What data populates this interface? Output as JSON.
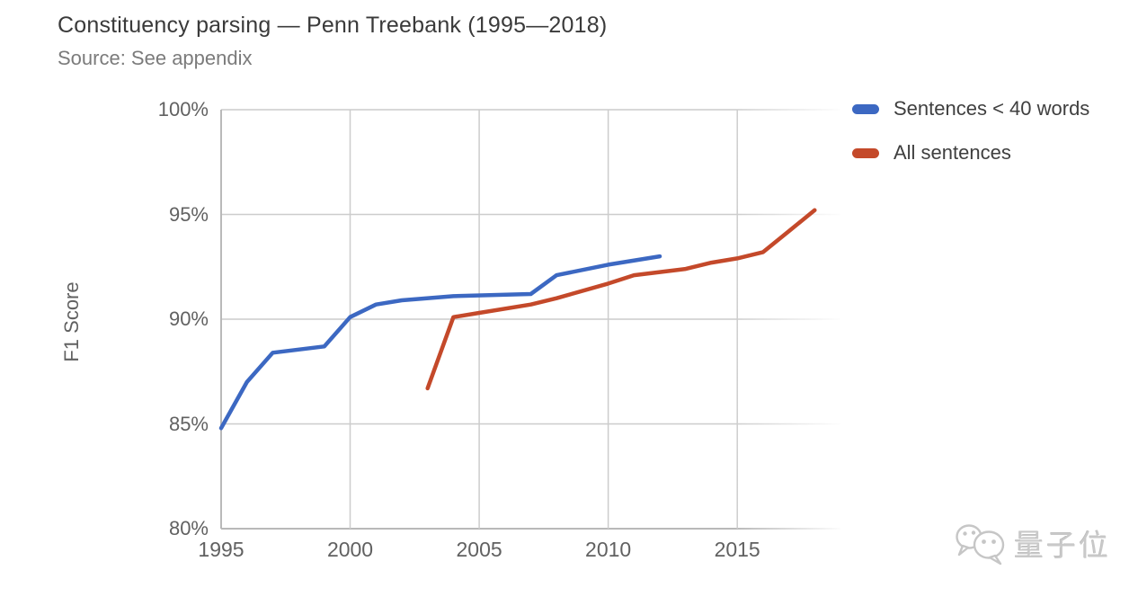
{
  "header": {
    "title": "Constituency parsing — Penn Treebank (1995—2018)",
    "source": "Source: See appendix"
  },
  "chart_data": {
    "type": "line",
    "title": "Constituency parsing — Penn Treebank (1995—2018)",
    "subtitle": "Source: See appendix",
    "xlabel": "",
    "ylabel": "F1 Score",
    "xlim": [
      1995,
      2019
    ],
    "ylim": [
      80,
      100
    ],
    "x_ticks": [
      1995,
      2000,
      2005,
      2010,
      2015
    ],
    "y_ticks": [
      80,
      85,
      90,
      95,
      100
    ],
    "y_tick_suffix": "%",
    "grid": true,
    "legend_position": "top-right",
    "colors": {
      "grid": "#cccccc",
      "axis": "#b9b9b9",
      "tick_text": "#616161",
      "title_text": "#3a3a3a",
      "subtitle_text": "#7b7b7b"
    },
    "series": [
      {
        "name": "Sentences < 40 words",
        "color": "#3c68c2",
        "points": [
          [
            1995,
            84.8
          ],
          [
            1996,
            87.0
          ],
          [
            1997,
            88.4
          ],
          [
            1999,
            88.7
          ],
          [
            2000,
            90.1
          ],
          [
            2001,
            90.7
          ],
          [
            2002,
            90.9
          ],
          [
            2004,
            91.1
          ],
          [
            2007,
            91.2
          ],
          [
            2008,
            92.1
          ],
          [
            2010,
            92.6
          ],
          [
            2012,
            93.0
          ]
        ]
      },
      {
        "name": "All sentences",
        "color": "#c4492a",
        "points": [
          [
            2003,
            86.7
          ],
          [
            2004,
            90.1
          ],
          [
            2005,
            90.3
          ],
          [
            2007,
            90.7
          ],
          [
            2008,
            91.0
          ],
          [
            2010,
            91.7
          ],
          [
            2011,
            92.1
          ],
          [
            2013,
            92.4
          ],
          [
            2014,
            92.7
          ],
          [
            2015,
            92.9
          ],
          [
            2016,
            93.2
          ],
          [
            2017,
            94.2
          ],
          [
            2018,
            95.2
          ]
        ]
      }
    ]
  },
  "watermark": {
    "text": "量子位"
  }
}
